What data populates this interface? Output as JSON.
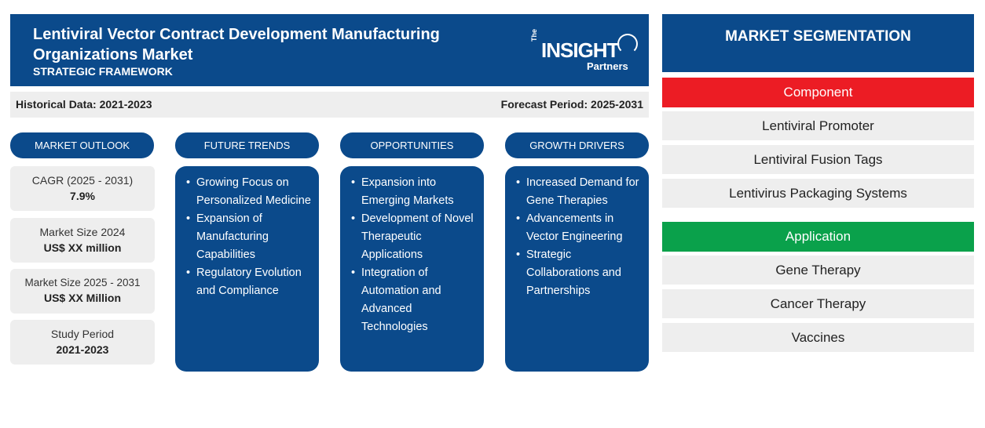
{
  "header": {
    "title_line1": "Lentiviral Vector Contract Development Manufacturing",
    "title_line2": "Organizations Market",
    "subtitle": "STRATEGIC FRAMEWORK",
    "logo": {
      "the": "The",
      "main": "INSIGHT",
      "sub": "Partners"
    }
  },
  "info": {
    "historical": "Historical Data: 2021-2023",
    "forecast": "Forecast Period: 2025-2031"
  },
  "columns": {
    "market_outlook": "MARKET OUTLOOK",
    "future_trends": "FUTURE TRENDS",
    "opportunities": "OPPORTUNITIES",
    "growth_drivers": "GROWTH DRIVERS"
  },
  "outlook": [
    {
      "label": "CAGR (2025 - 2031)",
      "value": "7.9%"
    },
    {
      "label": "Market Size 2024",
      "value": "US$ XX million"
    },
    {
      "label": "Market Size 2025 - 2031",
      "value": "US$ XX Million"
    },
    {
      "label": "Study Period",
      "value": "2021-2023"
    }
  ],
  "trends": [
    "Growing Focus on Personalized Medicine",
    "Expansion of Manufacturing Capabilities",
    "Regulatory Evolution and Compliance"
  ],
  "opportunities": [
    "Expansion into Emerging Markets",
    "Development of Novel Therapeutic Applications",
    "Integration of Automation and Advanced Technologies"
  ],
  "drivers": [
    "Increased Demand for Gene Therapies",
    "Advancements in Vector Engineering",
    "Strategic Collaborations and Partnerships"
  ],
  "segmentation": {
    "title": "MARKET SEGMENTATION",
    "component": {
      "label": "Component",
      "color": "#ec1c24",
      "items": [
        "Lentiviral Promoter",
        "Lentiviral Fusion Tags",
        "Lentivirus Packaging Systems"
      ]
    },
    "application": {
      "label": "Application",
      "color": "#0aa14b",
      "items": [
        "Gene Therapy",
        "Cancer Therapy",
        "Vaccines"
      ]
    }
  },
  "colors": {
    "primary": "#0b4a8b",
    "panel": "#eeeeee"
  }
}
